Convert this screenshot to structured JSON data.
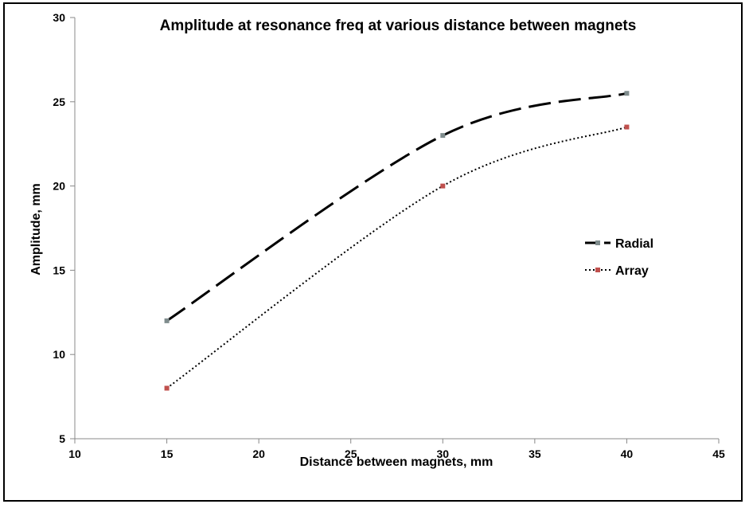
{
  "chart_data": {
    "type": "line",
    "title": "Amplitude at resonance freq at various distance between magnets",
    "xlabel": "Distance between magnets, mm",
    "ylabel": "Amplitude, mm",
    "xlim": [
      10,
      45
    ],
    "ylim": [
      5,
      30
    ],
    "xticks": [
      10,
      15,
      20,
      25,
      30,
      35,
      40,
      45
    ],
    "yticks": [
      5,
      10,
      15,
      20,
      25,
      30
    ],
    "grid": false,
    "smooth": true,
    "legend_position": "right",
    "series": [
      {
        "name": "Radial",
        "x": [
          15,
          30,
          40
        ],
        "y": [
          12,
          23,
          25.5
        ],
        "color": "#000000",
        "marker_color": "#7f8c8d",
        "line_style": "long-dash"
      },
      {
        "name": "Array",
        "x": [
          15,
          30,
          40
        ],
        "y": [
          8,
          20,
          23.5
        ],
        "color": "#000000",
        "marker_color": "#c0504d",
        "line_style": "dotted"
      }
    ]
  }
}
